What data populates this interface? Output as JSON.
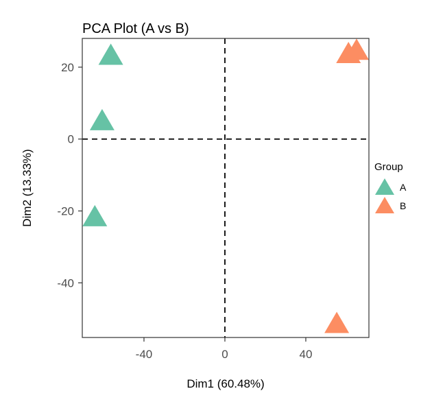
{
  "chart_data": {
    "type": "scatter",
    "title": "PCA Plot (A vs B)",
    "xlabel": "Dim1 (60.48%)",
    "ylabel": "Dim2 (13.33%)",
    "xlim": [
      -70.5,
      71.2
    ],
    "ylim": [
      -55.2,
      28.0
    ],
    "xticks": [
      -40,
      0,
      40
    ],
    "yticks": [
      20,
      0,
      -20,
      -40
    ],
    "grid": false,
    "reference_lines": {
      "x": 0,
      "y": 0,
      "style": "dashed"
    },
    "marker": "triangle",
    "legend": {
      "title": "Group",
      "placement": "right"
    },
    "series": [
      {
        "name": "A",
        "color": "#66C2A5",
        "points": [
          [
            -56.4,
            23.6
          ],
          [
            -60.7,
            5.4
          ],
          [
            -64.3,
            -21.3
          ]
        ]
      },
      {
        "name": "B",
        "color": "#FC8D62",
        "points": [
          [
            61.1,
            24.1
          ],
          [
            65.1,
            25.0
          ],
          [
            55.3,
            -51.0
          ]
        ]
      }
    ]
  }
}
